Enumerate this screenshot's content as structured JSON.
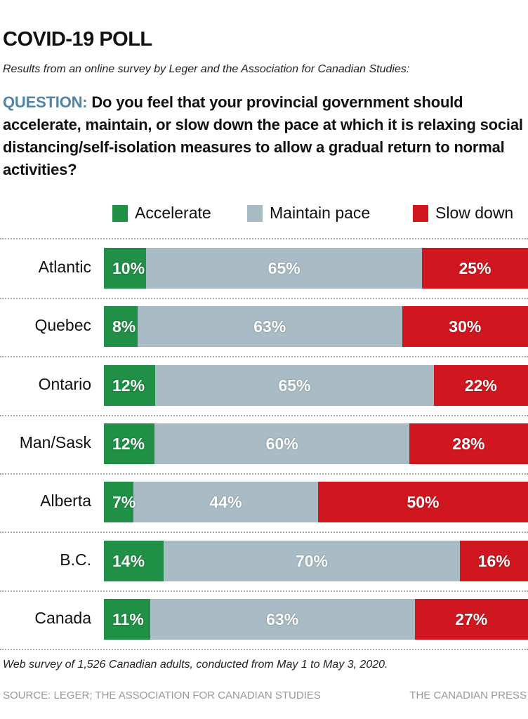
{
  "chart_data": {
    "type": "bar",
    "orientation": "horizontal",
    "stacked": true,
    "title": "COVID-19 POLL",
    "subtitle": "Results from an online survey by Leger and the Association for Canadian Studies:",
    "question_label": "QUESTION:",
    "question": "Do you feel that your provincial government should accelerate, maintain, or slow down the pace at which it is relaxing social distancing/self-isolation measures to allow a gradual return to normal activities?",
    "categories": [
      "Atlantic",
      "Quebec",
      "Ontario",
      "Man/Sask",
      "Alberta",
      "B.C.",
      "Canada"
    ],
    "series": [
      {
        "name": "Accelerate",
        "color": "#1f9045",
        "values": [
          10,
          8,
          12,
          12,
          7,
          14,
          11
        ]
      },
      {
        "name": "Maintain pace",
        "color": "#a9bcc6",
        "values": [
          65,
          63,
          65,
          60,
          44,
          70,
          63
        ]
      },
      {
        "name": "Slow down",
        "color": "#d0161e",
        "values": [
          25,
          30,
          22,
          28,
          50,
          16,
          27
        ]
      }
    ],
    "unit": "%",
    "legend_position": "top-right",
    "grid": false,
    "note": "Web survey of 1,526 Canadian adults, conducted from May 1 to May 3, 2020.",
    "source": "SOURCE: LEGER; THE ASSOCIATION FOR CANADIAN STUDIES",
    "credit": "THE CANADIAN PRESS"
  }
}
